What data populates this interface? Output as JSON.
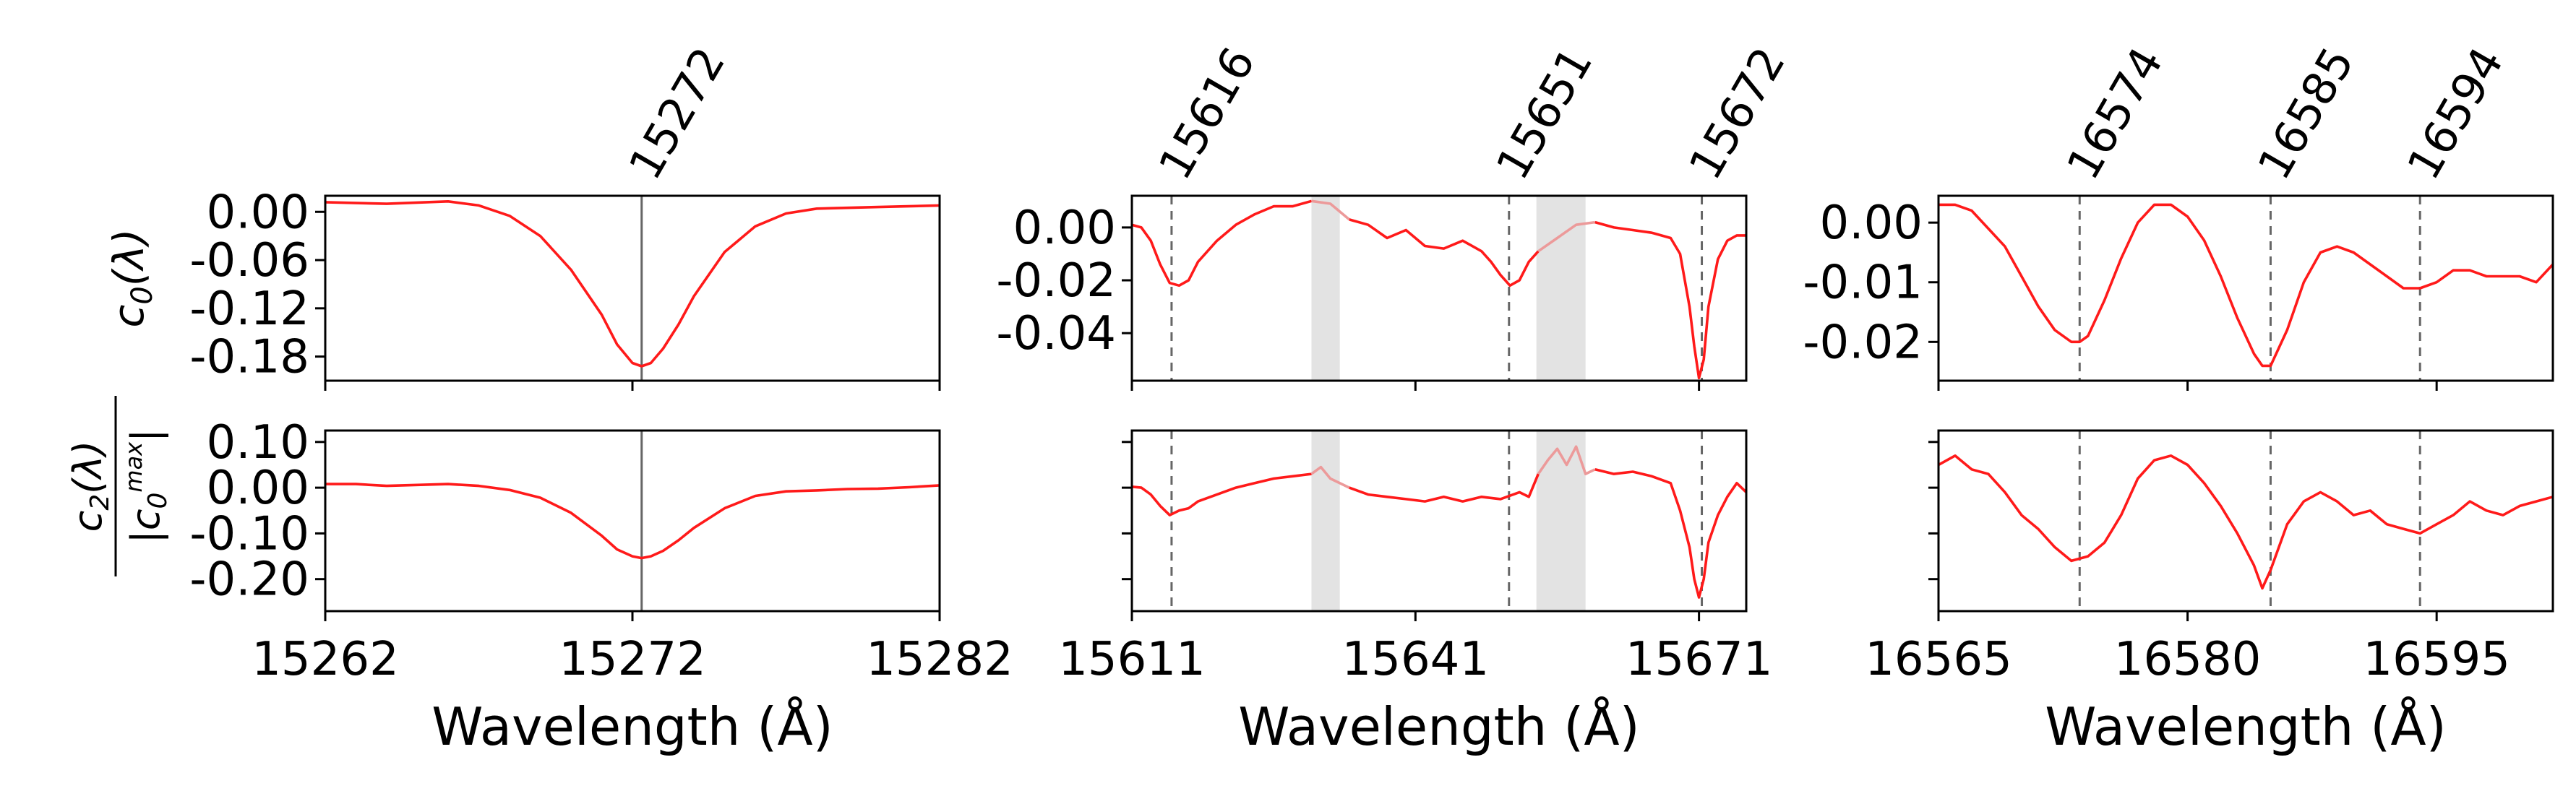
{
  "chart_data": [
    {
      "type": "line",
      "panel": "top-left",
      "title": "",
      "xlabel": "",
      "ylabel": "c_0(λ)",
      "xlim": [
        15262,
        15282
      ],
      "ylim": [
        -0.21,
        0.02
      ],
      "yticks": [
        0.0,
        -0.06,
        -0.12,
        -0.18
      ],
      "ytick_labels": [
        "0.00",
        "-0.06",
        "-0.12",
        "-0.18"
      ],
      "xticks": [
        15262,
        15272,
        15282
      ],
      "vlines": [
        {
          "x": 15272.3,
          "label": "15272",
          "style": "solid"
        }
      ],
      "masked_ranges": [],
      "series": [
        {
          "name": "c0",
          "x": [
            15262,
            15264,
            15266,
            15267,
            15268,
            15269,
            15270,
            15271,
            15271.5,
            15272,
            15272.3,
            15272.6,
            15273,
            15273.5,
            15274,
            15275,
            15276,
            15277,
            15278,
            15280,
            15282
          ],
          "y": [
            0.012,
            0.01,
            0.013,
            0.008,
            -0.005,
            -0.03,
            -0.072,
            -0.128,
            -0.165,
            -0.188,
            -0.192,
            -0.188,
            -0.17,
            -0.14,
            -0.105,
            -0.05,
            -0.018,
            -0.002,
            0.004,
            0.006,
            0.008
          ]
        }
      ]
    },
    {
      "type": "line",
      "panel": "top-middle",
      "xlim": [
        15611,
        15676
      ],
      "ylim": [
        -0.058,
        0.012
      ],
      "yticks": [
        0.0,
        -0.02,
        -0.04
      ],
      "ytick_labels": [
        "0.00",
        "-0.02",
        "-0.04"
      ],
      "xticks": [
        15611,
        15641,
        15671
      ],
      "vlines": [
        {
          "x": 15615.2,
          "label": "15616",
          "style": "dashed"
        },
        {
          "x": 15650.9,
          "label": "15651",
          "style": "dashed"
        },
        {
          "x": 15671.3,
          "label": "15672",
          "style": "dashed"
        }
      ],
      "masked_ranges": [
        [
          15630,
          15633
        ],
        [
          15653.8,
          15659
        ]
      ],
      "series": [
        {
          "name": "c0",
          "x": [
            15611,
            15612,
            15613,
            15614,
            15615,
            15616,
            15617,
            15618,
            15620,
            15622,
            15624,
            15626,
            15628,
            15630,
            15632,
            15634,
            15636,
            15638,
            15640,
            15642,
            15644,
            15646,
            15648,
            15649,
            15650,
            15651,
            15652,
            15653,
            15654,
            15656,
            15658,
            15660,
            15662,
            15664,
            15666,
            15668,
            15669,
            15670,
            15670.5,
            15671,
            15671.5,
            15672,
            15673,
            15674,
            15675,
            15676
          ],
          "y": [
            0.001,
            0.0,
            -0.005,
            -0.014,
            -0.021,
            -0.022,
            -0.02,
            -0.013,
            -0.005,
            0.001,
            0.005,
            0.008,
            0.008,
            0.01,
            0.009,
            0.003,
            0.001,
            -0.004,
            -0.001,
            -0.007,
            -0.008,
            -0.005,
            -0.009,
            -0.013,
            -0.018,
            -0.022,
            -0.02,
            -0.013,
            -0.009,
            -0.004,
            0.001,
            0.002,
            0.0,
            -0.001,
            -0.002,
            -0.004,
            -0.01,
            -0.03,
            -0.045,
            -0.057,
            -0.05,
            -0.03,
            -0.012,
            -0.005,
            -0.003,
            -0.003
          ]
        }
      ]
    },
    {
      "type": "line",
      "panel": "top-right",
      "xlim": [
        16565,
        16602
      ],
      "ylim": [
        -0.0265,
        0.0045
      ],
      "yticks": [
        0.0,
        -0.01,
        -0.02
      ],
      "ytick_labels": [
        "0.00",
        "-0.01",
        "-0.02"
      ],
      "xticks": [
        16565,
        16580,
        16595
      ],
      "vlines": [
        {
          "x": 16573.5,
          "label": "16574",
          "style": "dashed"
        },
        {
          "x": 16585.0,
          "label": "16585",
          "style": "dashed"
        },
        {
          "x": 16594.0,
          "label": "16594",
          "style": "dashed"
        }
      ],
      "masked_ranges": [],
      "series": [
        {
          "name": "c0",
          "x": [
            16565,
            16566,
            16567,
            16568,
            16569,
            16570,
            16571,
            16572,
            16573,
            16573.5,
            16574,
            16575,
            16576,
            16577,
            16578,
            16579,
            16580,
            16581,
            16582,
            16583,
            16584,
            16584.5,
            16585,
            16586,
            16587,
            16588,
            16589,
            16590,
            16591,
            16592,
            16593,
            16594,
            16595,
            16596,
            16597,
            16598,
            16599,
            16600,
            16601,
            16602
          ],
          "y": [
            0.003,
            0.003,
            0.002,
            -0.001,
            -0.004,
            -0.009,
            -0.014,
            -0.018,
            -0.02,
            -0.02,
            -0.019,
            -0.013,
            -0.006,
            0.0,
            0.003,
            0.003,
            0.001,
            -0.003,
            -0.009,
            -0.016,
            -0.022,
            -0.024,
            -0.024,
            -0.018,
            -0.01,
            -0.005,
            -0.004,
            -0.005,
            -0.007,
            -0.009,
            -0.011,
            -0.011,
            -0.01,
            -0.008,
            -0.008,
            -0.009,
            -0.009,
            -0.009,
            -0.01,
            -0.007
          ]
        }
      ]
    },
    {
      "type": "line",
      "panel": "bottom-left",
      "xlabel": "Wavelength (Å)",
      "ylabel": "c_2(λ) / |c_0^max|",
      "xlim": [
        15262,
        15282
      ],
      "ylim": [
        -0.27,
        0.125
      ],
      "yticks": [
        0.1,
        0.0,
        -0.1,
        -0.2
      ],
      "ytick_labels": [
        "0.10",
        "0.00",
        "-0.10",
        "-0.20"
      ],
      "xticks": [
        15262,
        15272,
        15282
      ],
      "xtick_labels": [
        "15262",
        "15272",
        "15282"
      ],
      "vlines": [
        {
          "x": 15272.3,
          "label": "",
          "style": "solid"
        }
      ],
      "masked_ranges": [],
      "series": [
        {
          "name": "c2",
          "x": [
            15262,
            15263,
            15264,
            15265,
            15266,
            15267,
            15268,
            15269,
            15270,
            15271,
            15271.5,
            15272,
            15272.3,
            15272.6,
            15273,
            15273.5,
            15274,
            15275,
            15276,
            15277,
            15278,
            15279,
            15280,
            15281,
            15282
          ],
          "y": [
            0.008,
            0.008,
            0.004,
            0.006,
            0.008,
            0.004,
            -0.005,
            -0.022,
            -0.055,
            -0.105,
            -0.135,
            -0.15,
            -0.154,
            -0.15,
            -0.138,
            -0.115,
            -0.088,
            -0.045,
            -0.018,
            -0.008,
            -0.006,
            -0.003,
            -0.002,
            0.001,
            0.005
          ]
        }
      ]
    },
    {
      "type": "line",
      "panel": "bottom-middle",
      "xlabel": "Wavelength (Å)",
      "xlim": [
        15611,
        15676
      ],
      "ylim": [
        -0.27,
        0.125
      ],
      "yticks": [
        0.1,
        0.0,
        -0.1,
        -0.2
      ],
      "xticks": [
        15611,
        15641,
        15671
      ],
      "xtick_labels": [
        "15611",
        "15641",
        "15671"
      ],
      "vlines": [
        {
          "x": 15615.2,
          "label": "",
          "style": "dashed"
        },
        {
          "x": 15650.9,
          "label": "",
          "style": "dashed"
        },
        {
          "x": 15671.3,
          "label": "",
          "style": "dashed"
        }
      ],
      "masked_ranges": [
        [
          15630,
          15633
        ],
        [
          15653.8,
          15659
        ]
      ],
      "series": [
        {
          "name": "c2",
          "x": [
            15611,
            15612,
            15613,
            15614,
            15615,
            15616,
            15617,
            15618,
            15620,
            15622,
            15624,
            15626,
            15628,
            15630,
            15631,
            15632,
            15634,
            15636,
            15638,
            15640,
            15642,
            15644,
            15646,
            15648,
            15650,
            15652,
            15653,
            15654,
            15655,
            15656,
            15657,
            15658,
            15659,
            15660,
            15662,
            15664,
            15666,
            15668,
            15669,
            15670,
            15670.5,
            15671,
            15671.5,
            15672,
            15673,
            15674,
            15675,
            15676
          ],
          "y": [
            0.002,
            0.0,
            -0.015,
            -0.04,
            -0.06,
            -0.05,
            -0.045,
            -0.03,
            -0.015,
            0.0,
            0.01,
            0.02,
            0.025,
            0.03,
            0.045,
            0.02,
            0.0,
            -0.015,
            -0.02,
            -0.025,
            -0.03,
            -0.02,
            -0.03,
            -0.02,
            -0.025,
            -0.01,
            -0.02,
            0.03,
            0.06,
            0.085,
            0.05,
            0.09,
            0.03,
            0.04,
            0.03,
            0.035,
            0.025,
            0.01,
            -0.05,
            -0.13,
            -0.2,
            -0.24,
            -0.2,
            -0.12,
            -0.06,
            -0.02,
            0.01,
            -0.01
          ]
        }
      ]
    },
    {
      "type": "line",
      "panel": "bottom-right",
      "xlabel": "Wavelength (Å)",
      "xlim": [
        16565,
        16602
      ],
      "ylim": [
        -0.27,
        0.125
      ],
      "yticks": [
        0.1,
        0.0,
        -0.1,
        -0.2
      ],
      "xticks": [
        16565,
        16580,
        16595
      ],
      "xtick_labels": [
        "16565",
        "16580",
        "16595"
      ],
      "vlines": [
        {
          "x": 16573.5,
          "label": "",
          "style": "dashed"
        },
        {
          "x": 16585.0,
          "label": "",
          "style": "dashed"
        },
        {
          "x": 16594.0,
          "label": "",
          "style": "dashed"
        }
      ],
      "masked_ranges": [],
      "series": [
        {
          "name": "c2",
          "x": [
            16565,
            16566,
            16567,
            16568,
            16569,
            16570,
            16571,
            16572,
            16573,
            16574,
            16575,
            16576,
            16577,
            16578,
            16579,
            16580,
            16581,
            16582,
            16583,
            16584,
            16584.5,
            16585,
            16586,
            16587,
            16588,
            16589,
            16590,
            16591,
            16592,
            16593,
            16594,
            16595,
            16596,
            16597,
            16598,
            16599,
            16600,
            16601,
            16602
          ],
          "y": [
            0.05,
            0.07,
            0.04,
            0.03,
            -0.01,
            -0.06,
            -0.09,
            -0.13,
            -0.16,
            -0.15,
            -0.12,
            -0.06,
            0.02,
            0.06,
            0.07,
            0.05,
            0.01,
            -0.04,
            -0.1,
            -0.17,
            -0.22,
            -0.18,
            -0.08,
            -0.03,
            -0.01,
            -0.03,
            -0.06,
            -0.05,
            -0.08,
            -0.09,
            -0.1,
            -0.08,
            -0.06,
            -0.03,
            -0.05,
            -0.06,
            -0.04,
            -0.03,
            -0.02
          ]
        }
      ]
    }
  ]
}
